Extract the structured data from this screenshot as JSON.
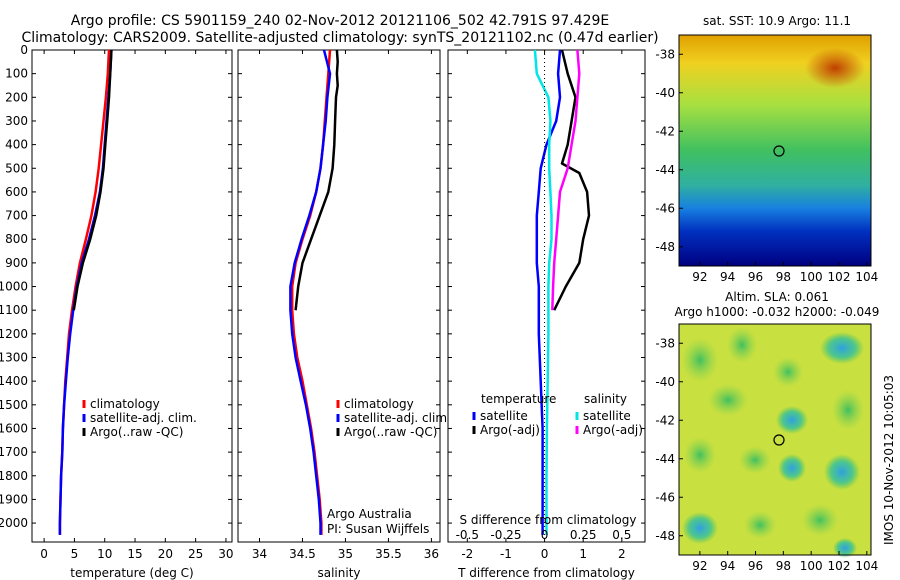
{
  "header": {
    "title_line1": "Argo profile: CS 5901159_240 02-Nov-2012 20121106_502 42.791S 97.429E",
    "title_line2": "Climatology: CARS2009. Satellite-adjusted climatology: synTS_20121102.nc (0.47d earlier)"
  },
  "colors": {
    "climatology": "#ff0000",
    "satellite": "#0000ff",
    "argo": "#000000",
    "sal_satellite": "#00e5e5",
    "sal_argo": "#ff00ff"
  },
  "chart_data": [
    {
      "type": "line",
      "id": "temperature",
      "xlabel": "temperature (deg C)",
      "ylabel": "",
      "xlim": [
        -2,
        31
      ],
      "ylim": [
        2080,
        0
      ],
      "y_reversed": true,
      "xticks": [
        0,
        5,
        10,
        15,
        20,
        25,
        30
      ],
      "yticks": [
        0,
        100,
        200,
        300,
        400,
        500,
        600,
        700,
        800,
        900,
        1000,
        1100,
        1200,
        1300,
        1400,
        1500,
        1600,
        1700,
        1800,
        1900,
        2000
      ],
      "legend": [
        "climatology",
        "satellite-adj. clim.",
        "Argo(..raw -QC)"
      ],
      "series": [
        {
          "name": "climatology",
          "color": "#ff0000",
          "points": [
            [
              10.7,
              0
            ],
            [
              10.5,
              100
            ],
            [
              10.2,
              200
            ],
            [
              9.8,
              300
            ],
            [
              9.4,
              400
            ],
            [
              9.0,
              500
            ],
            [
              8.5,
              600
            ],
            [
              7.8,
              700
            ],
            [
              6.9,
              800
            ],
            [
              5.9,
              900
            ],
            [
              5.2,
              1000
            ],
            [
              4.6,
              1100
            ],
            [
              4.1,
              1200
            ],
            [
              3.8,
              1300
            ],
            [
              3.5,
              1400
            ],
            [
              3.3,
              1500
            ],
            [
              3.1,
              1600
            ],
            [
              3.0,
              1700
            ],
            [
              2.8,
              1800
            ],
            [
              2.7,
              1900
            ],
            [
              2.6,
              2000
            ],
            [
              2.6,
              2050
            ]
          ]
        },
        {
          "name": "satellite-adj. clim.",
          "color": "#0000ff",
          "points": [
            [
              11.1,
              0
            ],
            [
              10.9,
              100
            ],
            [
              10.6,
              200
            ],
            [
              10.3,
              300
            ],
            [
              10.0,
              400
            ],
            [
              9.7,
              500
            ],
            [
              9.2,
              600
            ],
            [
              8.4,
              700
            ],
            [
              7.4,
              800
            ],
            [
              6.2,
              900
            ],
            [
              5.4,
              1000
            ],
            [
              4.8,
              1100
            ],
            [
              4.3,
              1200
            ],
            [
              3.9,
              1300
            ],
            [
              3.6,
              1400
            ],
            [
              3.3,
              1500
            ],
            [
              3.1,
              1600
            ],
            [
              3.0,
              1700
            ],
            [
              2.8,
              1800
            ],
            [
              2.7,
              1900
            ],
            [
              2.6,
              2000
            ],
            [
              2.6,
              2050
            ]
          ]
        },
        {
          "name": "Argo(..raw -QC)",
          "color": "#000000",
          "points": [
            [
              11.1,
              0
            ],
            [
              10.9,
              100
            ],
            [
              10.7,
              200
            ],
            [
              10.4,
              300
            ],
            [
              10.1,
              400
            ],
            [
              9.8,
              500
            ],
            [
              9.3,
              600
            ],
            [
              8.6,
              700
            ],
            [
              7.6,
              800
            ],
            [
              6.4,
              900
            ],
            [
              5.5,
              1000
            ],
            [
              4.9,
              1100
            ]
          ]
        }
      ]
    },
    {
      "type": "line",
      "id": "salinity",
      "xlabel": "salinity",
      "ylabel": "",
      "xlim": [
        33.75,
        36.1
      ],
      "ylim": [
        2080,
        0
      ],
      "y_reversed": true,
      "xticks": [
        34,
        34.5,
        35,
        35.5,
        36
      ],
      "xticklabels": [
        "34",
        "34.5",
        "35",
        "35.5",
        "36"
      ],
      "legend": [
        "climatology",
        "satellite-adj. clim.",
        "Argo(..raw -QC)"
      ],
      "annotations": [
        "Argo Australia",
        "PI: Susan Wijffels"
      ],
      "series": [
        {
          "name": "climatology",
          "color": "#ff0000",
          "points": [
            [
              34.82,
              0
            ],
            [
              34.8,
              100
            ],
            [
              34.78,
              200
            ],
            [
              34.76,
              300
            ],
            [
              34.74,
              400
            ],
            [
              34.71,
              500
            ],
            [
              34.66,
              600
            ],
            [
              34.59,
              700
            ],
            [
              34.5,
              800
            ],
            [
              34.42,
              900
            ],
            [
              34.38,
              1000
            ],
            [
              34.38,
              1100
            ],
            [
              34.4,
              1200
            ],
            [
              34.44,
              1300
            ],
            [
              34.5,
              1400
            ],
            [
              34.55,
              1500
            ],
            [
              34.6,
              1600
            ],
            [
              34.64,
              1700
            ],
            [
              34.67,
              1800
            ],
            [
              34.7,
              1900
            ],
            [
              34.72,
              2000
            ],
            [
              34.72,
              2050
            ]
          ]
        },
        {
          "name": "satellite-adj. clim.",
          "color": "#0000ff",
          "points": [
            [
              34.75,
              0
            ],
            [
              34.82,
              100
            ],
            [
              34.79,
              200
            ],
            [
              34.77,
              300
            ],
            [
              34.74,
              400
            ],
            [
              34.71,
              500
            ],
            [
              34.66,
              600
            ],
            [
              34.58,
              700
            ],
            [
              34.49,
              800
            ],
            [
              34.41,
              900
            ],
            [
              34.36,
              1000
            ],
            [
              34.36,
              1100
            ],
            [
              34.38,
              1200
            ],
            [
              34.42,
              1300
            ],
            [
              34.48,
              1400
            ],
            [
              34.54,
              1500
            ],
            [
              34.59,
              1600
            ],
            [
              34.63,
              1700
            ],
            [
              34.66,
              1800
            ],
            [
              34.69,
              1900
            ],
            [
              34.71,
              2000
            ],
            [
              34.71,
              2050
            ]
          ]
        },
        {
          "name": "Argo(..raw -QC)",
          "color": "#000000",
          "points": [
            [
              34.9,
              0
            ],
            [
              34.91,
              50
            ],
            [
              34.9,
              100
            ],
            [
              34.91,
              150
            ],
            [
              34.89,
              200
            ],
            [
              34.88,
              300
            ],
            [
              34.87,
              400
            ],
            [
              34.85,
              500
            ],
            [
              34.8,
              600
            ],
            [
              34.7,
              700
            ],
            [
              34.6,
              800
            ],
            [
              34.5,
              900
            ],
            [
              34.45,
              1000
            ],
            [
              34.42,
              1100
            ]
          ]
        }
      ]
    },
    {
      "type": "line",
      "id": "difference",
      "xlabel": "T difference from climatology",
      "xlabel_top": "S difference from climatology",
      "xlim": [
        -2.5,
        2.6
      ],
      "ylim": [
        2080,
        0
      ],
      "y_reversed": true,
      "xticks": [
        -2,
        -1,
        0,
        1,
        2
      ],
      "xticks_top": [
        -0.5,
        -0.25,
        0,
        0.25,
        0.5
      ],
      "xticklabels_top": [
        "-0.5",
        "-0.25",
        "0",
        "0.25",
        "0.5"
      ],
      "legend_groups": [
        {
          "title": "temperature",
          "entries": [
            "satellite",
            "Argo(-adj)"
          ]
        },
        {
          "title": "salinity",
          "entries": [
            "satellite",
            "Argo(-adj)"
          ]
        }
      ],
      "series": [
        {
          "name": "temperature satellite",
          "color": "#0000ff",
          "points": [
            [
              0.4,
              0
            ],
            [
              0.35,
              100
            ],
            [
              0.4,
              200
            ],
            [
              0.3,
              300
            ],
            [
              0.05,
              400
            ],
            [
              -0.1,
              500
            ],
            [
              -0.15,
              600
            ],
            [
              -0.2,
              700
            ],
            [
              -0.2,
              800
            ],
            [
              -0.2,
              900
            ],
            [
              -0.15,
              1000
            ],
            [
              -0.15,
              1200
            ],
            [
              -0.1,
              1400
            ],
            [
              -0.05,
              1600
            ],
            [
              -0.05,
              1800
            ],
            [
              -0.05,
              2050
            ]
          ]
        },
        {
          "name": "temperature Argo(-adj)",
          "color": "#000000",
          "points": [
            [
              0.45,
              0
            ],
            [
              0.6,
              100
            ],
            [
              0.8,
              200
            ],
            [
              0.7,
              300
            ],
            [
              0.6,
              400
            ],
            [
              0.45,
              480
            ],
            [
              0.9,
              520
            ],
            [
              1.1,
              600
            ],
            [
              1.15,
              700
            ],
            [
              1.0,
              800
            ],
            [
              0.9,
              900
            ],
            [
              0.55,
              1000
            ],
            [
              0.25,
              1100
            ]
          ]
        },
        {
          "name": "salinity satellite",
          "color": "#00e5e5",
          "points": [
            [
              -0.25,
              0
            ],
            [
              -0.2,
              100
            ],
            [
              0.1,
              200
            ],
            [
              0.15,
              300
            ],
            [
              0.12,
              400
            ],
            [
              0.12,
              500
            ],
            [
              0.15,
              600
            ],
            [
              0.18,
              700
            ],
            [
              0.18,
              800
            ],
            [
              0.12,
              900
            ],
            [
              0.1,
              1000
            ],
            [
              0.1,
              1200
            ],
            [
              0.08,
              1400
            ],
            [
              0.06,
              1600
            ],
            [
              0.05,
              1800
            ],
            [
              0.05,
              2050
            ]
          ]
        },
        {
          "name": "salinity Argo(-adj)",
          "color": "#ff00ff",
          "points": [
            [
              0.85,
              0
            ],
            [
              0.9,
              100
            ],
            [
              0.85,
              200
            ],
            [
              0.8,
              300
            ],
            [
              0.7,
              400
            ],
            [
              0.6,
              500
            ],
            [
              0.4,
              600
            ],
            [
              0.35,
              700
            ],
            [
              0.3,
              800
            ],
            [
              0.25,
              900
            ],
            [
              0.22,
              1000
            ],
            [
              0.2,
              1100
            ]
          ]
        }
      ]
    },
    {
      "type": "heatmap",
      "id": "sst-map",
      "title": "sat. SST: 10.9 Argo: 11.1",
      "xlim": [
        90.5,
        104.3
      ],
      "ylim": [
        -49,
        -37
      ],
      "xticks": [
        92,
        94,
        96,
        98,
        100,
        102,
        104
      ],
      "yticks": [
        -38,
        -40,
        -42,
        -44,
        -46,
        -48
      ],
      "marker": [
        97.43,
        -42.79
      ]
    },
    {
      "type": "heatmap",
      "id": "sla-map",
      "title": "Altim. SLA: 0.061",
      "subtitle": "Argo h1000: -0.032 h2000: -0.049",
      "xlim": [
        90.5,
        104.3
      ],
      "ylim": [
        -49,
        -37
      ],
      "xticks": [
        92,
        94,
        96,
        98,
        100,
        102,
        104
      ],
      "yticks": [
        -38,
        -40,
        -42,
        -44,
        -46,
        -48
      ],
      "marker": [
        97.43,
        -42.79
      ]
    }
  ],
  "footer": {
    "stamp": "IMOS 10-Nov-2012 10:05:03"
  }
}
